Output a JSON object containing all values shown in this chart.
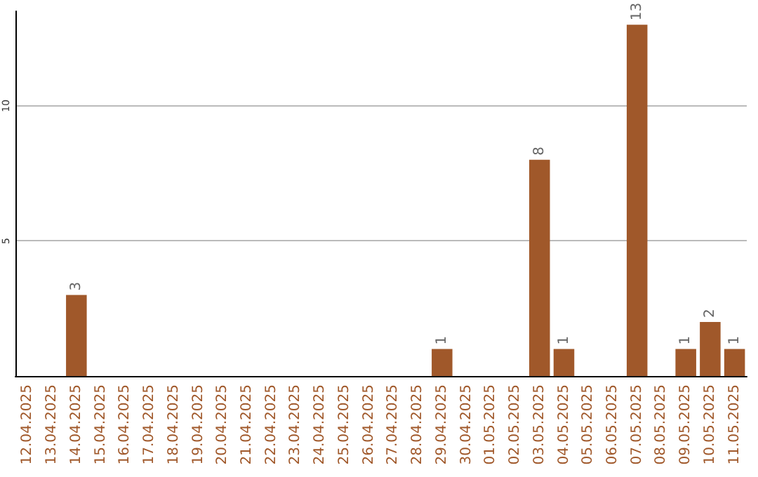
{
  "chart_data": {
    "type": "bar",
    "categories": [
      "12.04.2025",
      "13.04.2025",
      "14.04.2025",
      "15.04.2025",
      "16.04.2025",
      "17.04.2025",
      "18.04.2025",
      "19.04.2025",
      "20.04.2025",
      "21.04.2025",
      "22.04.2025",
      "23.04.2025",
      "24.04.2025",
      "25.04.2025",
      "26.04.2025",
      "27.04.2025",
      "28.04.2025",
      "29.04.2025",
      "30.04.2025",
      "01.05.2025",
      "02.05.2025",
      "03.05.2025",
      "04.05.2025",
      "05.05.2025",
      "06.05.2025",
      "07.05.2025",
      "08.05.2025",
      "09.05.2025",
      "10.05.2025",
      "11.05.2025"
    ],
    "values": [
      0,
      0,
      3,
      0,
      0,
      0,
      0,
      0,
      0,
      0,
      0,
      0,
      0,
      0,
      0,
      0,
      0,
      1,
      0,
      0,
      0,
      8,
      1,
      0,
      0,
      13,
      0,
      1,
      2,
      1
    ],
    "value_labels": [
      null,
      null,
      "3",
      null,
      null,
      null,
      null,
      null,
      null,
      null,
      null,
      null,
      null,
      null,
      null,
      null,
      null,
      "1",
      null,
      null,
      null,
      "8",
      "1",
      null,
      null,
      "13",
      null,
      "1",
      "2",
      "1"
    ],
    "color": "#a0582a",
    "ylim": [
      0,
      13.5
    ],
    "yticks": [
      5,
      10
    ],
    "grid": "y"
  }
}
